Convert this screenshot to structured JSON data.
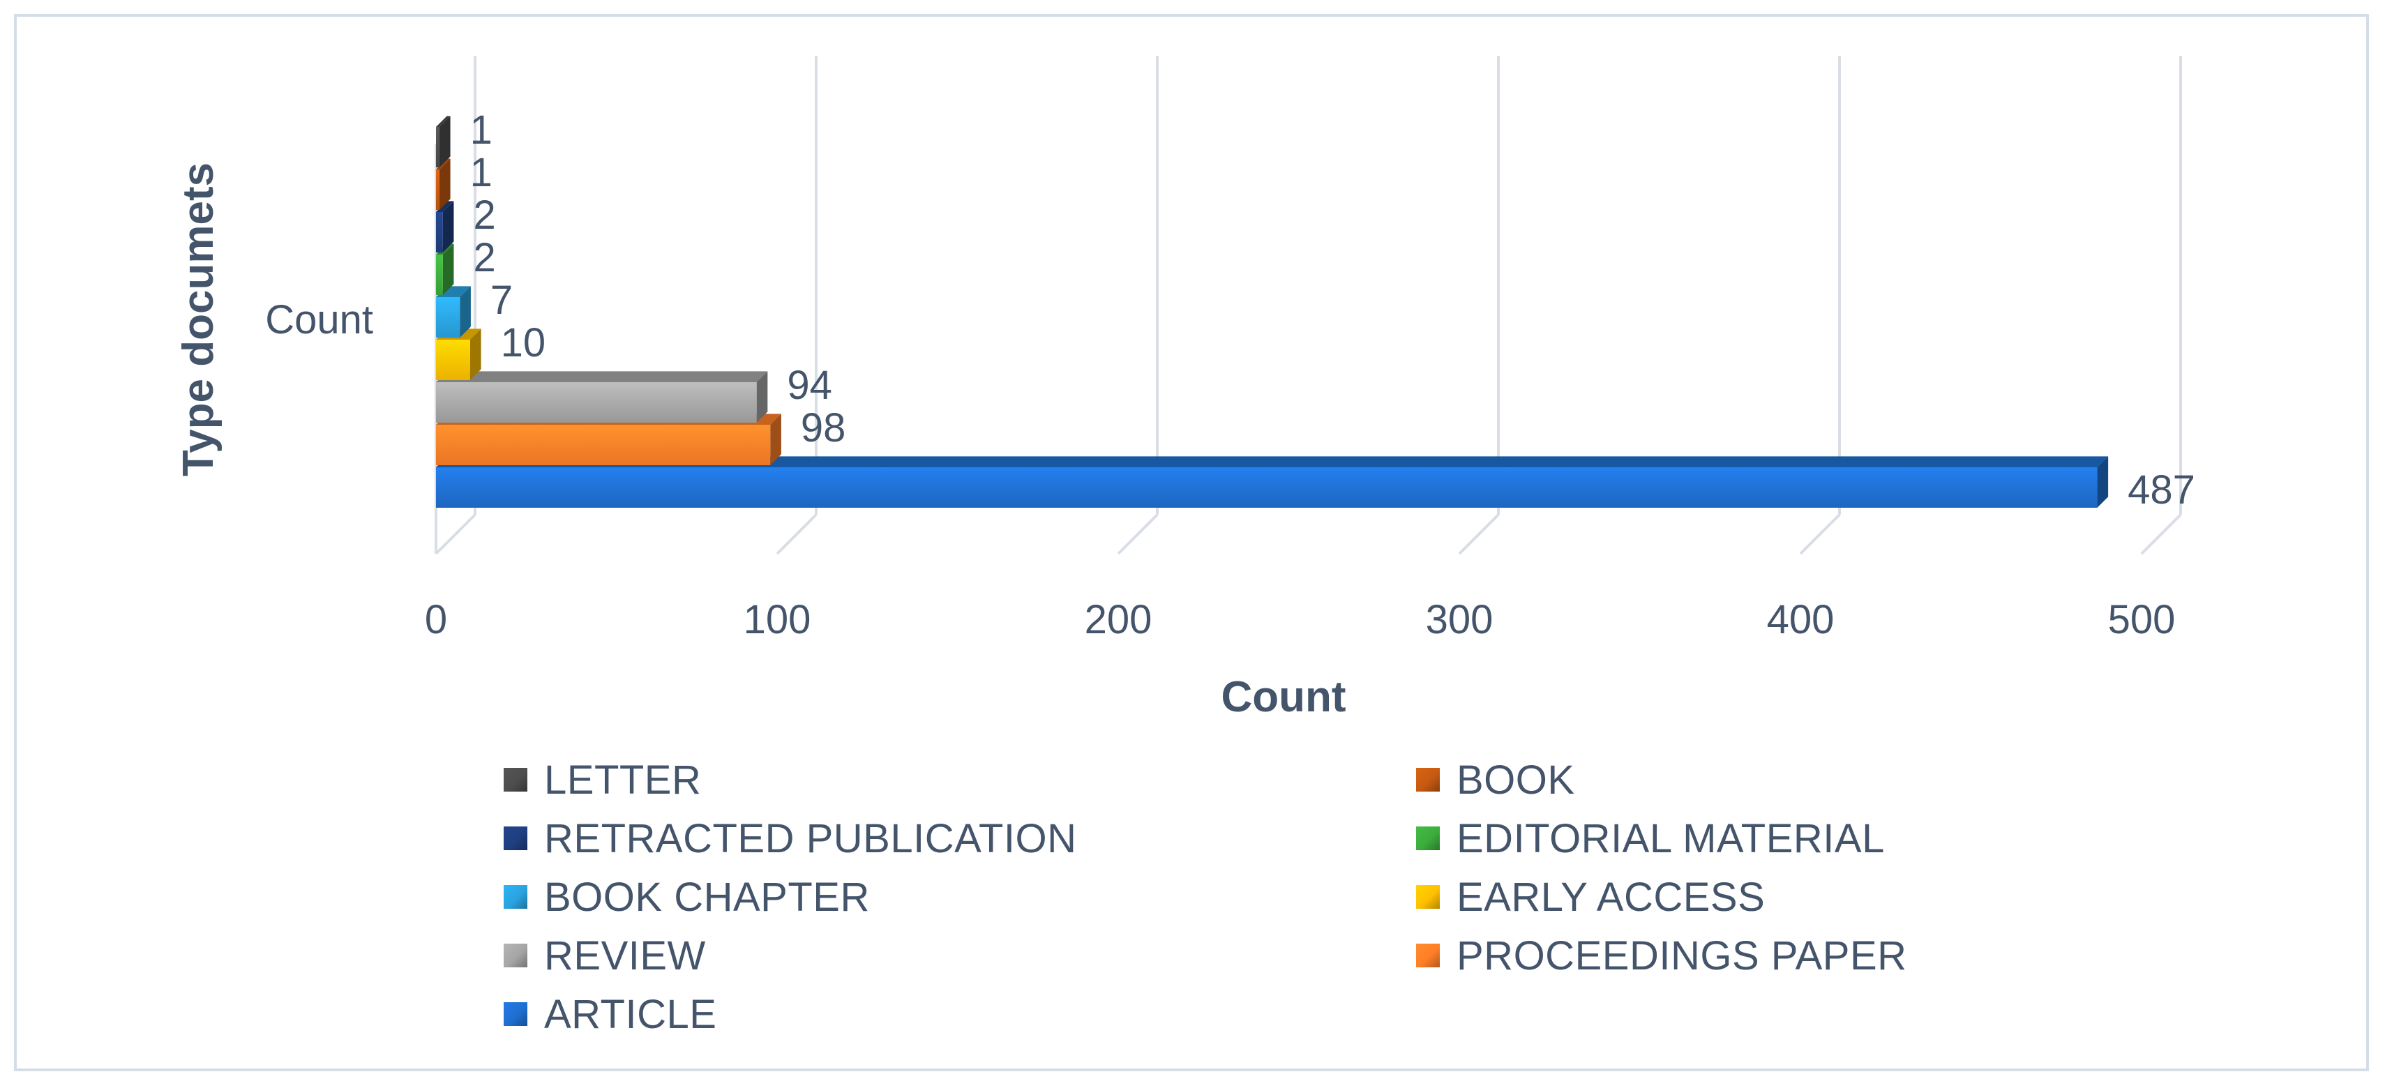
{
  "chart_data": {
    "type": "bar",
    "orientation": "horizontal",
    "style": "3d",
    "category_label": "Count",
    "xlabel": "Count",
    "ylabel": "Type documets",
    "xlim": [
      0,
      500
    ],
    "xticks": [
      0,
      100,
      200,
      300,
      400,
      500
    ],
    "grid": true,
    "legend_position": "bottom",
    "series": [
      {
        "name": "LETTER",
        "value": 1,
        "color": "#4d4d4d"
      },
      {
        "name": "BOOK",
        "value": 1,
        "color": "#c55a11"
      },
      {
        "name": "RETRACTED PUBLICATION",
        "value": 2,
        "color": "#1f3f7f"
      },
      {
        "name": "EDITORIAL MATERIAL",
        "value": 2,
        "color": "#3cac3c"
      },
      {
        "name": "BOOK CHAPTER",
        "value": 7,
        "color": "#2aa3e0"
      },
      {
        "name": "EARLY ACCESS",
        "value": 10,
        "color": "#ffc000"
      },
      {
        "name": "REVIEW",
        "value": 94,
        "color": "#a5a5a5"
      },
      {
        "name": "PROCEEDINGS PAPER",
        "value": 98,
        "color": "#ff7f27"
      },
      {
        "name": "ARTICLE",
        "value": 487,
        "color": "#1f6fd0"
      }
    ]
  }
}
